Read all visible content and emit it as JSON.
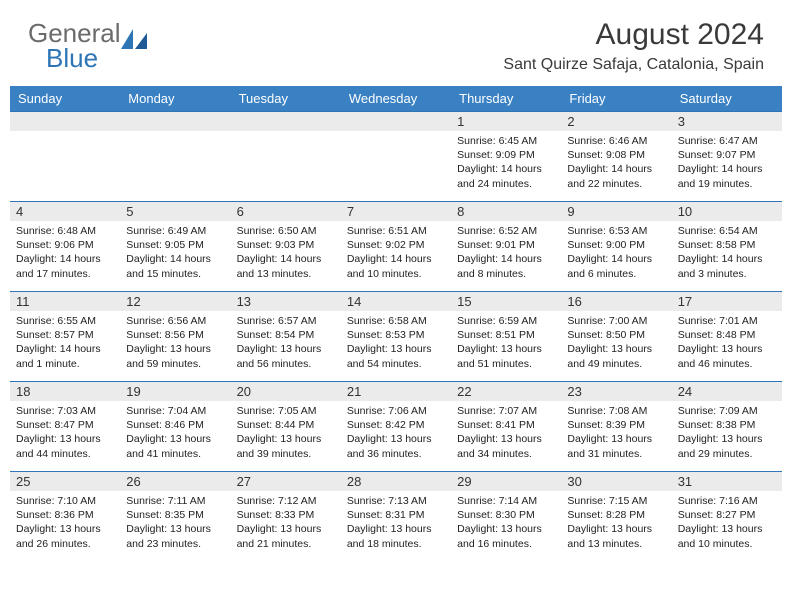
{
  "logo": {
    "general": "General",
    "blue": "Blue"
  },
  "title": {
    "month": "August 2024",
    "location": "Sant Quirze Safaja, Catalonia, Spain"
  },
  "colors": {
    "header_bg": "#3a81c4",
    "header_text": "#ffffff",
    "daynum_bg": "#ebebeb",
    "divider": "#2e75b6",
    "logo_gray": "#6b6b6b",
    "logo_blue": "#2e75b6"
  },
  "weekdays": [
    "Sunday",
    "Monday",
    "Tuesday",
    "Wednesday",
    "Thursday",
    "Friday",
    "Saturday"
  ],
  "leading_blanks": 4,
  "days": [
    {
      "n": "1",
      "sunrise": "Sunrise: 6:45 AM",
      "sunset": "Sunset: 9:09 PM",
      "d1": "Daylight: 14 hours",
      "d2": "and 24 minutes."
    },
    {
      "n": "2",
      "sunrise": "Sunrise: 6:46 AM",
      "sunset": "Sunset: 9:08 PM",
      "d1": "Daylight: 14 hours",
      "d2": "and 22 minutes."
    },
    {
      "n": "3",
      "sunrise": "Sunrise: 6:47 AM",
      "sunset": "Sunset: 9:07 PM",
      "d1": "Daylight: 14 hours",
      "d2": "and 19 minutes."
    },
    {
      "n": "4",
      "sunrise": "Sunrise: 6:48 AM",
      "sunset": "Sunset: 9:06 PM",
      "d1": "Daylight: 14 hours",
      "d2": "and 17 minutes."
    },
    {
      "n": "5",
      "sunrise": "Sunrise: 6:49 AM",
      "sunset": "Sunset: 9:05 PM",
      "d1": "Daylight: 14 hours",
      "d2": "and 15 minutes."
    },
    {
      "n": "6",
      "sunrise": "Sunrise: 6:50 AM",
      "sunset": "Sunset: 9:03 PM",
      "d1": "Daylight: 14 hours",
      "d2": "and 13 minutes."
    },
    {
      "n": "7",
      "sunrise": "Sunrise: 6:51 AM",
      "sunset": "Sunset: 9:02 PM",
      "d1": "Daylight: 14 hours",
      "d2": "and 10 minutes."
    },
    {
      "n": "8",
      "sunrise": "Sunrise: 6:52 AM",
      "sunset": "Sunset: 9:01 PM",
      "d1": "Daylight: 14 hours",
      "d2": "and 8 minutes."
    },
    {
      "n": "9",
      "sunrise": "Sunrise: 6:53 AM",
      "sunset": "Sunset: 9:00 PM",
      "d1": "Daylight: 14 hours",
      "d2": "and 6 minutes."
    },
    {
      "n": "10",
      "sunrise": "Sunrise: 6:54 AM",
      "sunset": "Sunset: 8:58 PM",
      "d1": "Daylight: 14 hours",
      "d2": "and 3 minutes."
    },
    {
      "n": "11",
      "sunrise": "Sunrise: 6:55 AM",
      "sunset": "Sunset: 8:57 PM",
      "d1": "Daylight: 14 hours",
      "d2": "and 1 minute."
    },
    {
      "n": "12",
      "sunrise": "Sunrise: 6:56 AM",
      "sunset": "Sunset: 8:56 PM",
      "d1": "Daylight: 13 hours",
      "d2": "and 59 minutes."
    },
    {
      "n": "13",
      "sunrise": "Sunrise: 6:57 AM",
      "sunset": "Sunset: 8:54 PM",
      "d1": "Daylight: 13 hours",
      "d2": "and 56 minutes."
    },
    {
      "n": "14",
      "sunrise": "Sunrise: 6:58 AM",
      "sunset": "Sunset: 8:53 PM",
      "d1": "Daylight: 13 hours",
      "d2": "and 54 minutes."
    },
    {
      "n": "15",
      "sunrise": "Sunrise: 6:59 AM",
      "sunset": "Sunset: 8:51 PM",
      "d1": "Daylight: 13 hours",
      "d2": "and 51 minutes."
    },
    {
      "n": "16",
      "sunrise": "Sunrise: 7:00 AM",
      "sunset": "Sunset: 8:50 PM",
      "d1": "Daylight: 13 hours",
      "d2": "and 49 minutes."
    },
    {
      "n": "17",
      "sunrise": "Sunrise: 7:01 AM",
      "sunset": "Sunset: 8:48 PM",
      "d1": "Daylight: 13 hours",
      "d2": "and 46 minutes."
    },
    {
      "n": "18",
      "sunrise": "Sunrise: 7:03 AM",
      "sunset": "Sunset: 8:47 PM",
      "d1": "Daylight: 13 hours",
      "d2": "and 44 minutes."
    },
    {
      "n": "19",
      "sunrise": "Sunrise: 7:04 AM",
      "sunset": "Sunset: 8:46 PM",
      "d1": "Daylight: 13 hours",
      "d2": "and 41 minutes."
    },
    {
      "n": "20",
      "sunrise": "Sunrise: 7:05 AM",
      "sunset": "Sunset: 8:44 PM",
      "d1": "Daylight: 13 hours",
      "d2": "and 39 minutes."
    },
    {
      "n": "21",
      "sunrise": "Sunrise: 7:06 AM",
      "sunset": "Sunset: 8:42 PM",
      "d1": "Daylight: 13 hours",
      "d2": "and 36 minutes."
    },
    {
      "n": "22",
      "sunrise": "Sunrise: 7:07 AM",
      "sunset": "Sunset: 8:41 PM",
      "d1": "Daylight: 13 hours",
      "d2": "and 34 minutes."
    },
    {
      "n": "23",
      "sunrise": "Sunrise: 7:08 AM",
      "sunset": "Sunset: 8:39 PM",
      "d1": "Daylight: 13 hours",
      "d2": "and 31 minutes."
    },
    {
      "n": "24",
      "sunrise": "Sunrise: 7:09 AM",
      "sunset": "Sunset: 8:38 PM",
      "d1": "Daylight: 13 hours",
      "d2": "and 29 minutes."
    },
    {
      "n": "25",
      "sunrise": "Sunrise: 7:10 AM",
      "sunset": "Sunset: 8:36 PM",
      "d1": "Daylight: 13 hours",
      "d2": "and 26 minutes."
    },
    {
      "n": "26",
      "sunrise": "Sunrise: 7:11 AM",
      "sunset": "Sunset: 8:35 PM",
      "d1": "Daylight: 13 hours",
      "d2": "and 23 minutes."
    },
    {
      "n": "27",
      "sunrise": "Sunrise: 7:12 AM",
      "sunset": "Sunset: 8:33 PM",
      "d1": "Daylight: 13 hours",
      "d2": "and 21 minutes."
    },
    {
      "n": "28",
      "sunrise": "Sunrise: 7:13 AM",
      "sunset": "Sunset: 8:31 PM",
      "d1": "Daylight: 13 hours",
      "d2": "and 18 minutes."
    },
    {
      "n": "29",
      "sunrise": "Sunrise: 7:14 AM",
      "sunset": "Sunset: 8:30 PM",
      "d1": "Daylight: 13 hours",
      "d2": "and 16 minutes."
    },
    {
      "n": "30",
      "sunrise": "Sunrise: 7:15 AM",
      "sunset": "Sunset: 8:28 PM",
      "d1": "Daylight: 13 hours",
      "d2": "and 13 minutes."
    },
    {
      "n": "31",
      "sunrise": "Sunrise: 7:16 AM",
      "sunset": "Sunset: 8:27 PM",
      "d1": "Daylight: 13 hours",
      "d2": "and 10 minutes."
    }
  ]
}
